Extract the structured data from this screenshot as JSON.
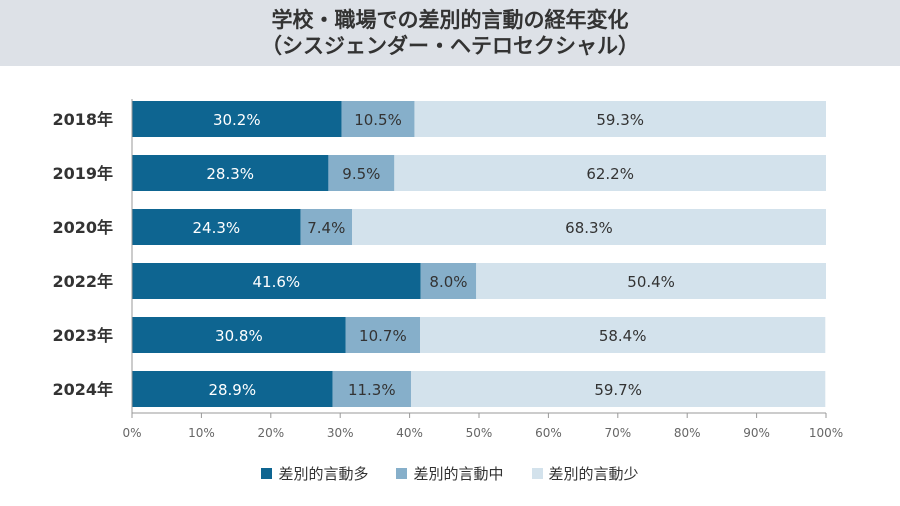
{
  "chart_data": {
    "type": "bar",
    "orientation": "horizontal",
    "stacked": true,
    "title": [
      "学校・職場での差別的言動の経年変化",
      "（シスジェンダー・ヘテロセクシャル）"
    ],
    "categories": [
      "2018年",
      "2019年",
      "2020年",
      "2022年",
      "2023年",
      "2024年"
    ],
    "series": [
      {
        "name": "差別的言動多",
        "color": "#0e6591",
        "values": [
          30.2,
          28.3,
          24.3,
          41.6,
          30.8,
          28.9
        ]
      },
      {
        "name": "差別的言動中",
        "color": "#86afca",
        "values": [
          10.5,
          9.5,
          7.4,
          8.0,
          10.7,
          11.3
        ]
      },
      {
        "name": "差別的言動少",
        "color": "#d3e2ec",
        "values": [
          59.3,
          62.2,
          68.3,
          50.4,
          58.4,
          59.7
        ]
      }
    ],
    "xlim": [
      0,
      100
    ],
    "xticks": [
      "0%",
      "10%",
      "20%",
      "30%",
      "40%",
      "50%",
      "60%",
      "70%",
      "80%",
      "90%",
      "100%"
    ],
    "legend_position": "bottom",
    "grid": false
  }
}
